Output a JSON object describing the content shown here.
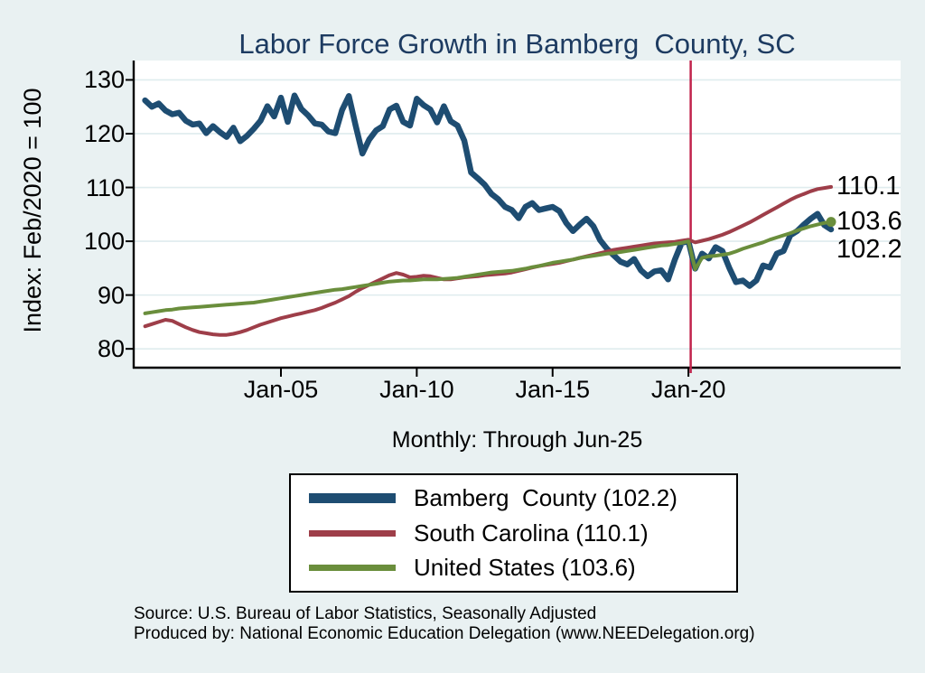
{
  "title": "Labor Force Growth in Bamberg  County, SC",
  "subtitle": "Monthly: Through Jun-25",
  "y_axis_title": "Index: Feb/2020 = 100",
  "source_line1": "Source: U.S. Bureau of Labor Statistics, Seasonally Adjusted",
  "source_line2": "Produced by: National Economic Education Delegation (www.NEEDelegation.org)",
  "colors": {
    "background": "#e9f1f2",
    "plot_background": "#ffffff",
    "gridline": "#dfecee",
    "axis": "#000000",
    "title_text": "#1d3b61",
    "reference_line": "#c1244c"
  },
  "chart_data": {
    "type": "line",
    "title": "Labor Force Growth in Bamberg  County, SC",
    "xlabel": "",
    "ylabel": "Index: Feb/2020 = 100",
    "grid": true,
    "legend_position": "bottom",
    "x_axis": {
      "xlim": [
        1999.58,
        2027.81
      ],
      "ticks": [
        {
          "label": "Jan-05",
          "value": 2005.0
        },
        {
          "label": "Jan-10",
          "value": 2010.0
        },
        {
          "label": "Jan-15",
          "value": 2015.0
        },
        {
          "label": "Jan-20",
          "value": 2020.0
        }
      ]
    },
    "y_axis": {
      "ylim": [
        76.5,
        133.6
      ],
      "ticks": [
        80,
        90,
        100,
        110,
        120,
        130
      ]
    },
    "reference_line": {
      "x": 2020.083
    },
    "x_start": 2000.0,
    "x_step": 0.25,
    "series": [
      {
        "name": "Bamberg County",
        "legend_label": "Bamberg  County (102.2)",
        "end_label": "102.2",
        "end_value": 102.2,
        "color": "#1e4d72",
        "line_width": 6.5,
        "swatch_height": 11,
        "end_marker": false,
        "values": [
          126.2,
          125.0,
          125.6,
          124.3,
          123.6,
          123.9,
          122.4,
          121.7,
          121.9,
          120.1,
          121.4,
          120.3,
          119.4,
          121.1,
          118.6,
          119.6,
          120.9,
          122.4,
          125.1,
          123.2,
          126.7,
          122.2,
          127.1,
          124.6,
          123.4,
          121.9,
          121.7,
          120.4,
          120.1,
          124.4,
          127.0,
          121.5,
          116.3,
          118.9,
          120.6,
          121.4,
          124.5,
          125.2,
          122.2,
          121.5,
          126.5,
          125.3,
          124.5,
          122.1,
          125.1,
          122.3,
          121.5,
          118.7,
          112.8,
          111.7,
          110.5,
          108.8,
          107.8,
          106.4,
          105.8,
          104.3,
          106.4,
          107.1,
          105.8,
          106.1,
          106.4,
          105.6,
          103.4,
          101.9,
          103.1,
          104.2,
          102.8,
          100.2,
          98.6,
          97.4,
          96.2,
          95.7,
          96.7,
          94.6,
          93.5,
          94.4,
          94.6,
          92.9,
          96.6,
          99.7,
          100.0,
          94.9,
          97.7,
          96.8,
          98.9,
          98.2,
          95.1,
          92.4,
          92.7,
          91.7,
          92.7,
          95.5,
          95.1,
          97.7,
          98.2,
          101.1,
          101.9,
          103.1,
          104.2,
          105.1,
          103.0,
          102.2
        ]
      },
      {
        "name": "South Carolina",
        "legend_label": "South Carolina (110.1)",
        "end_label": "110.1",
        "end_value": 110.1,
        "color": "#9e3e49",
        "line_width": 4,
        "swatch_height": 7,
        "end_marker": false,
        "values": [
          84.2,
          84.6,
          85.0,
          85.4,
          85.2,
          84.6,
          84.0,
          83.5,
          83.1,
          82.9,
          82.7,
          82.6,
          82.6,
          82.8,
          83.1,
          83.5,
          84.0,
          84.5,
          84.9,
          85.3,
          85.7,
          86.0,
          86.3,
          86.6,
          86.9,
          87.2,
          87.6,
          88.1,
          88.6,
          89.2,
          89.8,
          90.6,
          91.3,
          91.9,
          92.5,
          93.1,
          93.7,
          94.1,
          93.8,
          93.3,
          93.4,
          93.6,
          93.5,
          93.2,
          92.9,
          92.9,
          93.1,
          93.3,
          93.4,
          93.5,
          93.7,
          93.8,
          93.9,
          94.0,
          94.2,
          94.5,
          94.8,
          95.1,
          95.4,
          95.6,
          95.8,
          96.0,
          96.3,
          96.6,
          96.9,
          97.2,
          97.5,
          97.8,
          98.1,
          98.4,
          98.6,
          98.8,
          99.0,
          99.2,
          99.4,
          99.6,
          99.7,
          99.8,
          99.9,
          100.1,
          100.3,
          99.8,
          100.1,
          100.4,
          100.8,
          101.2,
          101.7,
          102.3,
          102.9,
          103.5,
          104.2,
          104.9,
          105.6,
          106.3,
          107.0,
          107.7,
          108.3,
          108.8,
          109.3,
          109.7,
          109.9,
          110.1
        ]
      },
      {
        "name": "United States",
        "legend_label": "United States (103.6)",
        "end_label": "103.6",
        "end_value": 103.6,
        "color": "#6a8e3c",
        "line_width": 4,
        "swatch_height": 7,
        "end_marker": true,
        "values": [
          86.6,
          86.8,
          87.0,
          87.2,
          87.3,
          87.5,
          87.6,
          87.7,
          87.8,
          87.9,
          88.0,
          88.1,
          88.2,
          88.3,
          88.4,
          88.5,
          88.6,
          88.8,
          89.0,
          89.2,
          89.4,
          89.6,
          89.8,
          90.0,
          90.2,
          90.4,
          90.6,
          90.8,
          91.0,
          91.1,
          91.3,
          91.5,
          91.7,
          91.9,
          92.1,
          92.3,
          92.5,
          92.6,
          92.7,
          92.7,
          92.8,
          92.9,
          92.9,
          92.9,
          93.0,
          93.1,
          93.2,
          93.4,
          93.6,
          93.8,
          94.0,
          94.2,
          94.3,
          94.4,
          94.5,
          94.7,
          94.9,
          95.2,
          95.4,
          95.7,
          96.0,
          96.2,
          96.4,
          96.6,
          96.9,
          97.1,
          97.3,
          97.5,
          97.7,
          97.8,
          98.0,
          98.2,
          98.4,
          98.6,
          98.8,
          99.0,
          99.2,
          99.3,
          99.5,
          99.7,
          100.0,
          94.8,
          96.9,
          97.2,
          97.3,
          97.5,
          97.7,
          98.1,
          98.6,
          99.0,
          99.4,
          99.8,
          100.3,
          100.7,
          101.1,
          101.5,
          102.0,
          102.4,
          102.8,
          103.1,
          103.4,
          103.6
        ]
      }
    ]
  }
}
